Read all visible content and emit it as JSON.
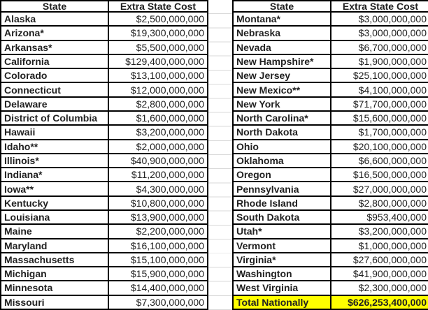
{
  "headers": {
    "state": "State",
    "cost": "Extra State Cost"
  },
  "left_table": {
    "rows": [
      {
        "state": "Alaska",
        "cost": "$2,500,000,000"
      },
      {
        "state": "Arizona*",
        "cost": "$19,300,000,000"
      },
      {
        "state": "Arkansas*",
        "cost": "$5,500,000,000"
      },
      {
        "state": "California",
        "cost": "$129,400,000,000"
      },
      {
        "state": "Colorado",
        "cost": "$13,100,000,000"
      },
      {
        "state": "Connecticut",
        "cost": "$12,000,000,000"
      },
      {
        "state": "Delaware",
        "cost": "$2,800,000,000"
      },
      {
        "state": "District of Columbia",
        "cost": "$1,600,000,000"
      },
      {
        "state": "Hawaii",
        "cost": "$3,200,000,000"
      },
      {
        "state": "Idaho**",
        "cost": "$2,000,000,000"
      },
      {
        "state": "Illinois*",
        "cost": "$40,900,000,000"
      },
      {
        "state": "Indiana*",
        "cost": "$11,200,000,000"
      },
      {
        "state": "Iowa**",
        "cost": "$4,300,000,000"
      },
      {
        "state": "Kentucky",
        "cost": "$10,800,000,000"
      },
      {
        "state": "Louisiana",
        "cost": "$13,900,000,000"
      },
      {
        "state": "Maine",
        "cost": "$2,200,000,000"
      },
      {
        "state": "Maryland",
        "cost": "$16,100,000,000"
      },
      {
        "state": "Massachusetts",
        "cost": "$15,100,000,000"
      },
      {
        "state": "Michigan",
        "cost": "$15,900,000,000"
      },
      {
        "state": "Minnesota",
        "cost": "$14,400,000,000"
      },
      {
        "state": "Missouri",
        "cost": "$7,300,000,000"
      }
    ]
  },
  "right_table": {
    "rows": [
      {
        "state": "Montana*",
        "cost": "$3,000,000,000"
      },
      {
        "state": "Nebraska",
        "cost": "$3,000,000,000"
      },
      {
        "state": "Nevada",
        "cost": "$6,700,000,000"
      },
      {
        "state": "New Hampshire*",
        "cost": "$1,900,000,000"
      },
      {
        "state": "New Jersey",
        "cost": "$25,100,000,000"
      },
      {
        "state": "New Mexico**",
        "cost": "$4,100,000,000"
      },
      {
        "state": "New York",
        "cost": "$71,700,000,000"
      },
      {
        "state": "North Carolina*",
        "cost": "$15,600,000,000"
      },
      {
        "state": "North Dakota",
        "cost": "$1,700,000,000"
      },
      {
        "state": "Ohio",
        "cost": "$20,100,000,000"
      },
      {
        "state": "Oklahoma",
        "cost": "$6,600,000,000"
      },
      {
        "state": "Oregon",
        "cost": "$16,500,000,000"
      },
      {
        "state": "Pennsylvania",
        "cost": "$27,000,000,000"
      },
      {
        "state": "Rhode Island",
        "cost": "$2,800,000,000"
      },
      {
        "state": "South Dakota",
        "cost": "$953,400,000"
      },
      {
        "state": "Utah*",
        "cost": "$3,200,000,000"
      },
      {
        "state": "Vermont",
        "cost": "$1,000,000,000"
      },
      {
        "state": "Virginia*",
        "cost": "$27,600,000,000"
      },
      {
        "state": "Washington",
        "cost": "$41,900,000,000"
      },
      {
        "state": "West Virginia",
        "cost": "$2,300,000,000"
      }
    ],
    "total_row": {
      "label": "Total Nationally",
      "value": "$626,253,400,000"
    }
  },
  "colors": {
    "total_highlight": "#FFFF00",
    "border": "#000000",
    "text": "#212121",
    "gridline": "#D9D9D9"
  }
}
